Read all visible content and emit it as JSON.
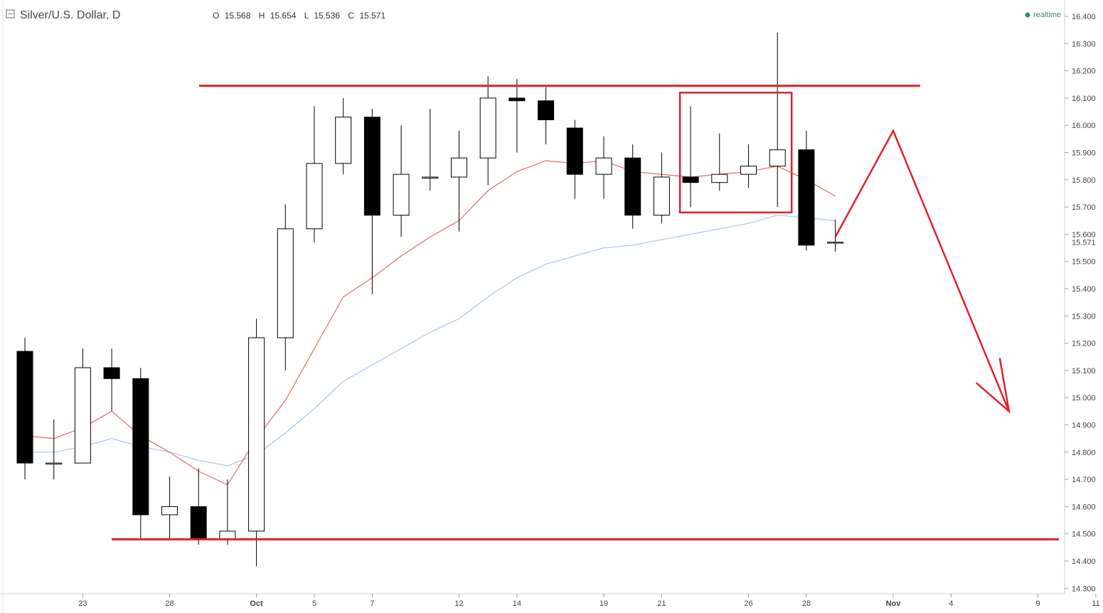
{
  "header": {
    "title": "Silver/U.S. Dollar, D",
    "ohlc": {
      "o_label": "O",
      "o": "15.568",
      "h_label": "H",
      "h": "15.654",
      "l_label": "L",
      "l": "15.536",
      "c_label": "C",
      "c": "15.571"
    },
    "realtime_label": "realtime"
  },
  "colors": {
    "bull_body": "#ffffff",
    "bear_body": "#000000",
    "ma_fast": "#e06a6a",
    "ma_slow": "#a8c4ec",
    "annotation": "#e0222a",
    "realtime_dot": "#2e8b6a"
  },
  "chart_data": {
    "type": "candlestick",
    "ylim": [
      14.3,
      16.4
    ],
    "y_ticks": [
      "16.400",
      "16.300",
      "16.200",
      "16.100",
      "16.000",
      "15.900",
      "15.800",
      "15.700",
      "15.600",
      "15.500",
      "15.400",
      "15.300",
      "15.200",
      "15.100",
      "15.000",
      "14.900",
      "14.800",
      "14.700",
      "14.600",
      "14.500",
      "14.400",
      "14.300"
    ],
    "y_values": [
      16.4,
      16.3,
      16.2,
      16.1,
      16.0,
      15.9,
      15.8,
      15.7,
      15.6,
      15.5,
      15.4,
      15.3,
      15.2,
      15.1,
      15.0,
      14.9,
      14.8,
      14.7,
      14.6,
      14.5,
      14.4,
      14.3
    ],
    "last_price_label": "15.571",
    "last_price": 15.571,
    "x_ticks": [
      {
        "label": "23",
        "date": "2015-09-23",
        "bold": false
      },
      {
        "label": "28",
        "date": "2015-09-28",
        "bold": false
      },
      {
        "label": "Oct",
        "date": "2015-10-01",
        "bold": true
      },
      {
        "label": "5",
        "date": "2015-10-05",
        "bold": false
      },
      {
        "label": "7",
        "date": "2015-10-07",
        "bold": false
      },
      {
        "label": "12",
        "date": "2015-10-12",
        "bold": false
      },
      {
        "label": "14",
        "date": "2015-10-14",
        "bold": false
      },
      {
        "label": "19",
        "date": "2015-10-19",
        "bold": false
      },
      {
        "label": "21",
        "date": "2015-10-21",
        "bold": false
      },
      {
        "label": "26",
        "date": "2015-10-26",
        "bold": false
      },
      {
        "label": "28",
        "date": "2015-10-28",
        "bold": false
      },
      {
        "label": "Nov",
        "date": "2015-11-02",
        "bold": true
      },
      {
        "label": "4",
        "date": "2015-11-04",
        "bold": false
      },
      {
        "label": "9",
        "date": "2015-11-09",
        "bold": false
      },
      {
        "label": "11",
        "date": "2015-11-11",
        "bold": false
      }
    ],
    "candles": [
      {
        "date": "2015-09-21",
        "open": 15.17,
        "high": 15.22,
        "low": 14.7,
        "close": 14.76
      },
      {
        "date": "2015-09-22",
        "open": 14.76,
        "high": 14.92,
        "low": 14.7,
        "close": 14.76
      },
      {
        "date": "2015-09-23",
        "open": 14.76,
        "high": 15.18,
        "low": 14.76,
        "close": 15.11
      },
      {
        "date": "2015-09-24",
        "open": 15.11,
        "high": 15.18,
        "low": 14.95,
        "close": 15.07
      },
      {
        "date": "2015-09-25",
        "open": 15.07,
        "high": 15.11,
        "low": 14.48,
        "close": 14.57
      },
      {
        "date": "2015-09-28",
        "open": 14.57,
        "high": 14.71,
        "low": 14.48,
        "close": 14.6
      },
      {
        "date": "2015-09-29",
        "open": 14.6,
        "high": 14.74,
        "low": 14.46,
        "close": 14.48
      },
      {
        "date": "2015-09-30",
        "open": 14.48,
        "high": 14.7,
        "low": 14.46,
        "close": 14.51
      },
      {
        "date": "2015-10-01",
        "open": 14.51,
        "high": 15.29,
        "low": 14.38,
        "close": 15.22
      },
      {
        "date": "2015-10-02",
        "open": 15.22,
        "high": 15.71,
        "low": 15.1,
        "close": 15.62
      },
      {
        "date": "2015-10-05",
        "open": 15.62,
        "high": 16.07,
        "low": 15.57,
        "close": 15.86
      },
      {
        "date": "2015-10-06",
        "open": 15.86,
        "high": 16.1,
        "low": 15.82,
        "close": 16.03
      },
      {
        "date": "2015-10-07",
        "open": 16.03,
        "high": 16.06,
        "low": 15.38,
        "close": 15.67
      },
      {
        "date": "2015-10-08",
        "open": 15.67,
        "high": 16.0,
        "low": 15.59,
        "close": 15.82
      },
      {
        "date": "2015-10-09",
        "open": 15.81,
        "high": 16.06,
        "low": 15.76,
        "close": 15.81
      },
      {
        "date": "2015-10-12",
        "open": 15.81,
        "high": 15.98,
        "low": 15.61,
        "close": 15.88
      },
      {
        "date": "2015-10-13",
        "open": 15.88,
        "high": 16.18,
        "low": 15.78,
        "close": 16.1
      },
      {
        "date": "2015-10-14",
        "open": 16.1,
        "high": 16.17,
        "low": 15.9,
        "close": 16.09
      },
      {
        "date": "2015-10-15",
        "open": 16.09,
        "high": 16.14,
        "low": 15.93,
        "close": 16.02
      },
      {
        "date": "2015-10-16",
        "open": 15.99,
        "high": 16.02,
        "low": 15.73,
        "close": 15.82
      },
      {
        "date": "2015-10-19",
        "open": 15.82,
        "high": 15.96,
        "low": 15.73,
        "close": 15.88
      },
      {
        "date": "2015-10-20",
        "open": 15.88,
        "high": 15.93,
        "low": 15.62,
        "close": 15.67
      },
      {
        "date": "2015-10-21",
        "open": 15.67,
        "high": 15.9,
        "low": 15.64,
        "close": 15.81
      },
      {
        "date": "2015-10-22",
        "open": 15.81,
        "high": 16.07,
        "low": 15.7,
        "close": 15.79
      },
      {
        "date": "2015-10-23",
        "open": 15.79,
        "high": 15.97,
        "low": 15.76,
        "close": 15.82
      },
      {
        "date": "2015-10-26",
        "open": 15.82,
        "high": 15.93,
        "low": 15.77,
        "close": 15.85
      },
      {
        "date": "2015-10-27",
        "open": 15.85,
        "high": 16.34,
        "low": 15.7,
        "close": 15.91
      },
      {
        "date": "2015-10-28",
        "open": 15.91,
        "high": 15.98,
        "low": 15.54,
        "close": 15.56
      },
      {
        "date": "2015-10-29",
        "open": 15.568,
        "high": 15.654,
        "low": 15.536,
        "close": 15.571
      }
    ],
    "ma_fast": [
      14.86,
      14.85,
      14.89,
      14.95,
      14.86,
      14.8,
      14.73,
      14.68,
      14.85,
      14.99,
      15.18,
      15.37,
      15.44,
      15.52,
      15.59,
      15.65,
      15.76,
      15.83,
      15.87,
      15.86,
      15.87,
      15.83,
      15.82,
      15.81,
      15.82,
      15.83,
      15.85,
      15.8,
      15.74
    ],
    "ma_slow": [
      14.8,
      14.8,
      14.82,
      14.85,
      14.82,
      14.8,
      14.77,
      14.75,
      14.79,
      14.87,
      14.96,
      15.06,
      15.12,
      15.18,
      15.24,
      15.29,
      15.37,
      15.44,
      15.49,
      15.52,
      15.55,
      15.56,
      15.58,
      15.6,
      15.62,
      15.64,
      15.67,
      15.66,
      15.65
    ],
    "annotations": {
      "resistance": 16.145,
      "support": 14.48,
      "box": {
        "from": "2015-10-22",
        "to": "2015-10-27",
        "top": 16.12,
        "bottom": 15.68
      },
      "forecast_path": [
        {
          "date": "2015-10-29",
          "price": 15.59
        },
        {
          "date": "2015-11-02",
          "price": 15.98
        },
        {
          "date": "2015-11-08",
          "price": 14.95
        }
      ]
    }
  }
}
